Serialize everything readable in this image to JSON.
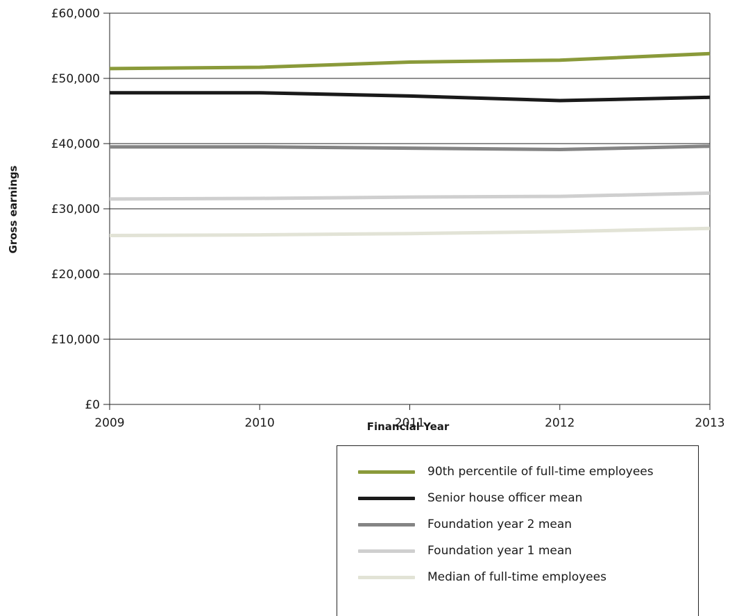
{
  "chart_data": {
    "type": "line",
    "title": "",
    "xlabel": "Financial Year",
    "ylabel": "Gross earnings",
    "x": [
      "2009",
      "2010",
      "2011",
      "2012",
      "2013"
    ],
    "ylim": [
      0,
      60000
    ],
    "yticks": [
      {
        "value": 0,
        "label": "£0"
      },
      {
        "value": 10000,
        "label": "£10,000"
      },
      {
        "value": 20000,
        "label": "£20,000"
      },
      {
        "value": 30000,
        "label": "£30,000"
      },
      {
        "value": 40000,
        "label": "£40,000"
      },
      {
        "value": 50000,
        "label": "£50,000"
      },
      {
        "value": 60000,
        "label": "£60,000"
      }
    ],
    "grid": true,
    "legend_position": "bottom-right",
    "series": [
      {
        "name": "90th percentile of full-time employees",
        "color": "#8a9a3a",
        "values": [
          51500,
          51700,
          52500,
          52800,
          53800
        ]
      },
      {
        "name": "Senior house officer mean",
        "color": "#1a1a1a",
        "values": [
          47800,
          47800,
          47300,
          46600,
          47100
        ]
      },
      {
        "name": "Foundation year 2 mean",
        "color": "#848484",
        "values": [
          39500,
          39500,
          39300,
          39100,
          39600
        ]
      },
      {
        "name": "Foundation year 1 mean",
        "color": "#cfcfcf",
        "values": [
          31500,
          31600,
          31800,
          31900,
          32400
        ]
      },
      {
        "name": "Median of full-time employees",
        "color": "#e2e3d6",
        "values": [
          25900,
          26000,
          26200,
          26500,
          27000
        ]
      }
    ]
  }
}
